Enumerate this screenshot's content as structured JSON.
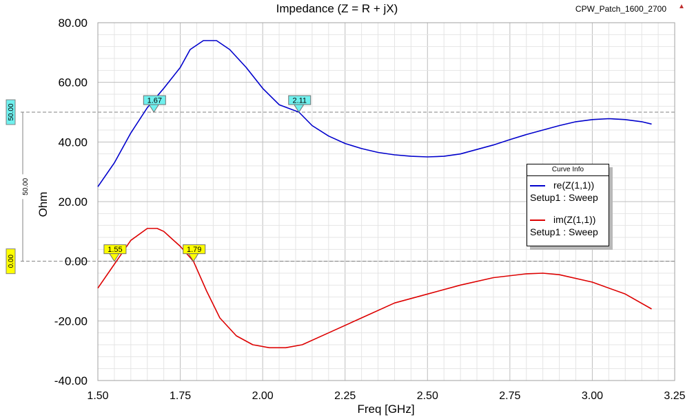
{
  "project_name": "CPW_Patch_1600_2700",
  "corner_icon": "warning-triangle-icon",
  "chart_data": {
    "type": "line",
    "title": "Impedance (Z = R + jX)",
    "xlabel": "Freq [GHz]",
    "ylabel": "Ohm",
    "xlim": [
      1.5,
      3.25
    ],
    "ylim": [
      -40,
      80
    ],
    "x_ticks": [
      "1.50",
      "1.75",
      "2.00",
      "2.25",
      "2.50",
      "2.75",
      "3.00",
      "3.25"
    ],
    "y_ticks": [
      "80.00",
      "60.00",
      "40.00",
      "20.00",
      "0.00",
      "-20.00",
      "-40.00"
    ],
    "grid": true,
    "legend_title": "Curve Info",
    "legend_position": "right",
    "series": [
      {
        "name": "re(Z(1,1))",
        "setup": "Setup1 : Sweep",
        "color": "#0000cc",
        "x": [
          1.5,
          1.55,
          1.6,
          1.65,
          1.7,
          1.75,
          1.78,
          1.82,
          1.86,
          1.9,
          1.95,
          2.0,
          2.05,
          2.11,
          2.15,
          2.2,
          2.25,
          2.3,
          2.35,
          2.4,
          2.45,
          2.5,
          2.55,
          2.6,
          2.65,
          2.7,
          2.75,
          2.8,
          2.85,
          2.9,
          2.95,
          3.0,
          3.05,
          3.1,
          3.15,
          3.18
        ],
        "values": [
          25.0,
          33.0,
          43.0,
          51.5,
          58.0,
          65.0,
          71.0,
          74.0,
          74.0,
          71.0,
          65.0,
          58.0,
          52.5,
          50.0,
          45.5,
          42.0,
          39.5,
          37.8,
          36.5,
          35.7,
          35.2,
          35.0,
          35.2,
          36.0,
          37.5,
          39.0,
          40.8,
          42.5,
          44.0,
          45.5,
          46.8,
          47.5,
          47.8,
          47.5,
          46.8,
          46.0
        ]
      },
      {
        "name": "im(Z(1,1))",
        "setup": "Setup1 : Sweep",
        "color": "#dd0000",
        "x": [
          1.5,
          1.55,
          1.6,
          1.65,
          1.68,
          1.7,
          1.72,
          1.75,
          1.79,
          1.83,
          1.87,
          1.92,
          1.97,
          2.02,
          2.07,
          2.12,
          2.2,
          2.3,
          2.4,
          2.5,
          2.6,
          2.7,
          2.8,
          2.85,
          2.9,
          3.0,
          3.1,
          3.18
        ],
        "values": [
          -9.0,
          -1.0,
          7.0,
          11.0,
          11.0,
          10.0,
          8.0,
          5.0,
          0.0,
          -10.0,
          -19.0,
          -25.0,
          -28.0,
          -29.0,
          -29.0,
          -28.0,
          -24.0,
          -19.0,
          -14.0,
          -11.0,
          -8.0,
          -5.5,
          -4.2,
          -4.0,
          -4.5,
          -7.0,
          -11.0,
          -16.0
        ]
      }
    ],
    "reference_lines": [
      {
        "value": 50,
        "label": "50.00",
        "color": "#6ff0ee"
      },
      {
        "value": 0,
        "label": "0.00",
        "color": "#ffff00"
      }
    ],
    "markers": [
      {
        "label": "1.67",
        "x": 1.67,
        "y": 50,
        "color": "#6ff0ee"
      },
      {
        "label": "2.11",
        "x": 2.11,
        "y": 50,
        "color": "#6ff0ee"
      },
      {
        "label": "1.55",
        "x": 1.55,
        "y": 0,
        "color": "#ffff00"
      },
      {
        "label": "1.79",
        "x": 1.79,
        "y": 0,
        "color": "#ffff00"
      }
    ],
    "range_label": "50.00"
  }
}
